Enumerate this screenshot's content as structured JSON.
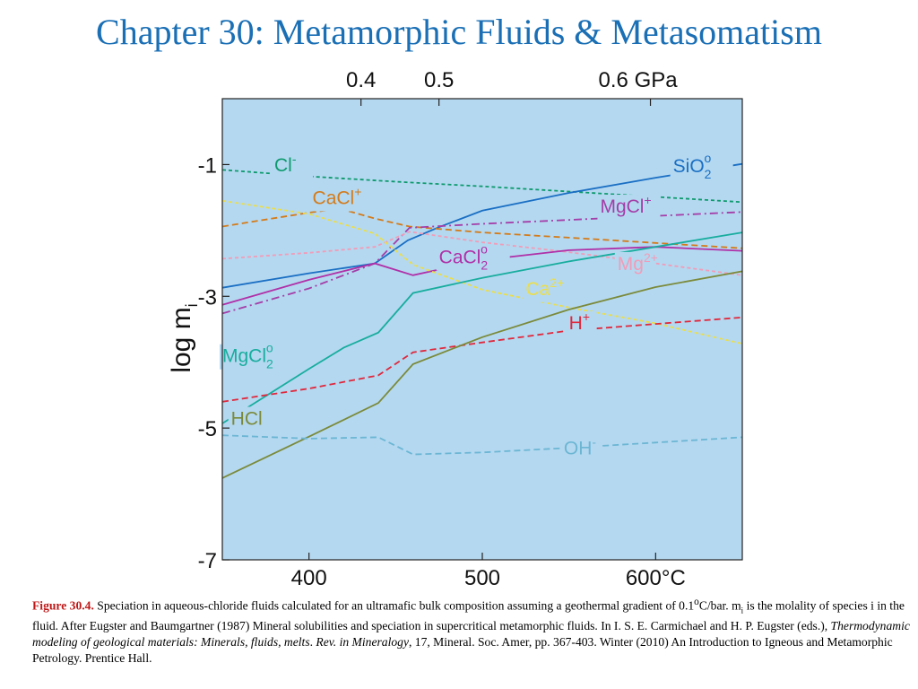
{
  "slide": {
    "title": "Chapter 30: Metamorphic Fluids & Metasomatism"
  },
  "chart_data": {
    "type": "line",
    "title": "",
    "xlabel": "600°C",
    "ylabel": "log m",
    "ylabel_subscript": "i",
    "xlim": [
      350,
      650
    ],
    "ylim": [
      -7,
      0
    ],
    "x_ticks": [
      {
        "value": 400,
        "label": "400"
      },
      {
        "value": 500,
        "label": "500"
      },
      {
        "value": 600,
        "label": "600°C"
      }
    ],
    "y_ticks": [
      {
        "value": -1,
        "label": "-1"
      },
      {
        "value": -3,
        "label": "-3"
      },
      {
        "value": -5,
        "label": "-5"
      },
      {
        "value": -7,
        "label": "-7"
      }
    ],
    "top_axis_label": "GPa",
    "top_ticks": [
      {
        "temp": 430,
        "label": "0.4"
      },
      {
        "temp": 475,
        "label": "0.5"
      },
      {
        "temp": 597,
        "label": "0.6 GPa"
      }
    ],
    "background_color": "#b4d8f0",
    "grid": false,
    "series": [
      {
        "name": "Cl",
        "sup": "-",
        "sub": "",
        "color": "#0e9a6e",
        "dash": "short",
        "lx": 380,
        "ly": -1.1,
        "x": [
          350,
          400,
          450,
          500,
          550,
          600,
          650
        ],
        "y": [
          -1.08,
          -1.18,
          -1.26,
          -1.33,
          -1.41,
          -1.49,
          -1.57
        ]
      },
      {
        "name": "SiO",
        "sup": "o",
        "sub": "2",
        "color": "#1a6fc4",
        "dash": "solid",
        "lx": 610,
        "ly": -1.12,
        "x": [
          350,
          400,
          438,
          457,
          475,
          500,
          550,
          600,
          650
        ],
        "y": [
          -2.87,
          -2.65,
          -2.5,
          -2.15,
          -1.95,
          -1.7,
          -1.43,
          -1.2,
          -0.99
        ]
      },
      {
        "name": "CaCl",
        "sup": "+",
        "sub": "",
        "color": "#d47b1a",
        "dash": "longdash",
        "lx": 402,
        "ly": -1.6,
        "x": [
          350,
          400,
          418,
          438,
          458,
          500,
          550,
          600,
          650
        ],
        "y": [
          -1.94,
          -1.73,
          -1.67,
          -1.82,
          -1.94,
          -2.03,
          -2.11,
          -2.19,
          -2.27
        ]
      },
      {
        "name": "MgCl",
        "sup": "+",
        "sub": "",
        "color": "#a43ea8",
        "dash": "dashdot",
        "lx": 568,
        "ly": -1.73,
        "x": [
          350,
          400,
          438,
          458,
          500,
          550,
          600,
          650
        ],
        "y": [
          -3.26,
          -2.88,
          -2.5,
          -1.96,
          -1.9,
          -1.84,
          -1.78,
          -1.72
        ]
      },
      {
        "name": "Mg",
        "sup": "2+",
        "sub": "",
        "color": "#f29cb8",
        "dash": "short",
        "lx": 578,
        "ly": -2.6,
        "x": [
          350,
          400,
          438,
          458,
          500,
          550,
          600,
          650
        ],
        "y": [
          -2.43,
          -2.34,
          -2.25,
          -2.02,
          -2.18,
          -2.33,
          -2.5,
          -2.68
        ]
      },
      {
        "name": "CaCl",
        "sup": "o",
        "sub": "2",
        "color": "#b030a8",
        "dash": "solid",
        "lx": 475,
        "ly": -2.5,
        "x": [
          350,
          400,
          438,
          460,
          500,
          550,
          600,
          650
        ],
        "y": [
          -3.13,
          -2.75,
          -2.5,
          -2.68,
          -2.45,
          -2.3,
          -2.25,
          -2.31
        ]
      },
      {
        "name": "Ca",
        "sup": "2+",
        "sub": "",
        "color": "#ecde4a",
        "dash": "short",
        "lx": 525,
        "ly": -2.98,
        "x": [
          350,
          400,
          438,
          460,
          500,
          550,
          600,
          650
        ],
        "y": [
          -1.55,
          -1.75,
          -2.05,
          -2.52,
          -2.9,
          -3.17,
          -3.41,
          -3.72
        ]
      },
      {
        "name": "MgCl",
        "sup": "o",
        "sub": "2",
        "color": "#18ad9e",
        "dash": "solid",
        "lx": 350,
        "ly": -4.0,
        "x": [
          350,
          400,
          420,
          440,
          460,
          500,
          550,
          600,
          650
        ],
        "y": [
          -4.93,
          -4.1,
          -3.78,
          -3.55,
          -2.95,
          -2.72,
          -2.47,
          -2.25,
          -2.03
        ]
      },
      {
        "name": "H",
        "sup": "+",
        "sub": "",
        "color": "#e0283c",
        "dash": "longdash",
        "lx": 550,
        "ly": -3.5,
        "x": [
          350,
          400,
          440,
          460,
          500,
          550,
          600,
          650
        ],
        "y": [
          -4.6,
          -4.4,
          -4.2,
          -3.85,
          -3.7,
          -3.52,
          -3.42,
          -3.32
        ]
      },
      {
        "name": "HCl",
        "sup": "",
        "sub": "",
        "color": "#7b8a3a",
        "dash": "solid",
        "lx": 355,
        "ly": -4.95,
        "x": [
          350,
          400,
          440,
          460,
          500,
          550,
          600,
          650
        ],
        "y": [
          -5.76,
          -5.13,
          -4.62,
          -4.03,
          -3.62,
          -3.2,
          -2.86,
          -2.62
        ]
      },
      {
        "name": "OH",
        "sup": "-",
        "sub": "",
        "color": "#6cb6d4",
        "dash": "longdash",
        "lx": 547,
        "ly": -5.4,
        "x": [
          350,
          400,
          440,
          460,
          500,
          550,
          600,
          650
        ],
        "y": [
          -5.11,
          -5.16,
          -5.14,
          -5.4,
          -5.37,
          -5.3,
          -5.22,
          -5.14
        ]
      }
    ]
  },
  "caption": {
    "label": "Figure 30.4.",
    "text1": " Speciation in aqueous-chloride fluids calculated for an ultramafic bulk composition assuming a geothermal gradient of 0.1",
    "sup_o": "o",
    "text2": "C/bar. m",
    "sub_i": "i",
    "text3": " is the molality of species i in the fluid. After Eugster and Baumgartner (1987) Mineral solubilities and speciation in supercritical metamorphic fluids. In I. S. E. Carmichael and H. P. Eugster (eds.), ",
    "italic1": "Thermodynamic modeling of geological materials: Minerals, fluids, melts",
    "text4": ". ",
    "italic2": "Rev. in Mineralogy",
    "text5": ", 17, Mineral. Soc. Amer, pp. 367-403. Winter (2010) An Introduction to Igneous and Metamorphic Petrology. Prentice Hall."
  }
}
